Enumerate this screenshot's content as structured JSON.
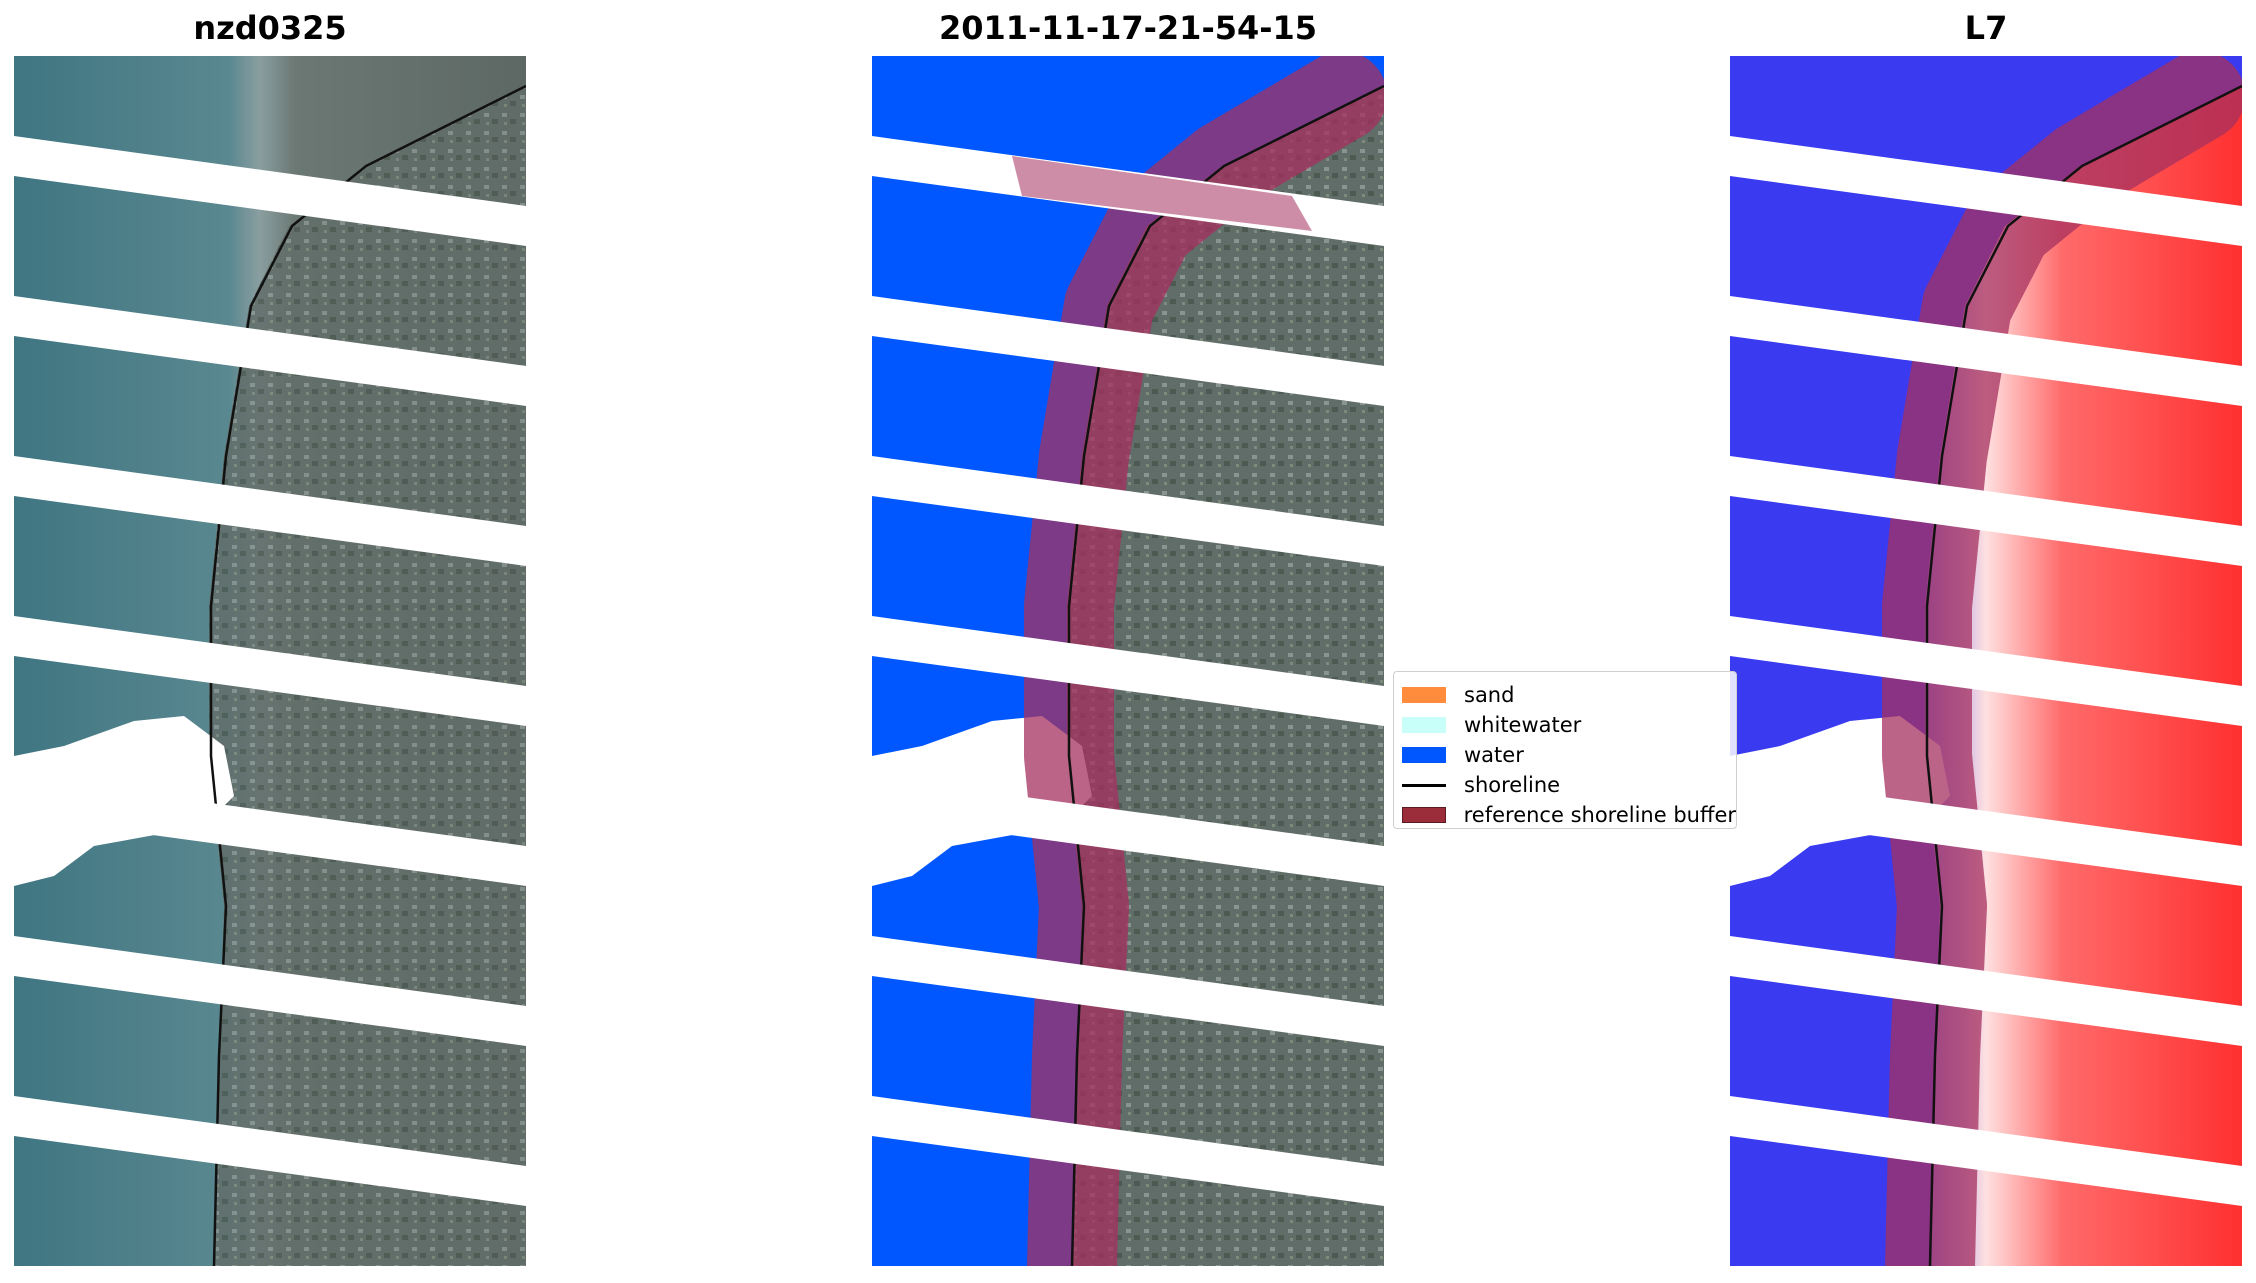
{
  "panels": [
    {
      "title": "nzd0325",
      "kind": "rgb-satellite-image"
    },
    {
      "title": "2011-11-17-21-54-15",
      "kind": "classified-image"
    },
    {
      "title": "L7",
      "kind": "water-index-image"
    }
  ],
  "legend": {
    "items": [
      {
        "label": "sand",
        "color": "#ff8c3c",
        "type": "patch"
      },
      {
        "label": "whitewater",
        "color": "#c8fff8",
        "type": "patch"
      },
      {
        "label": "water",
        "color": "#0057ff",
        "type": "patch"
      },
      {
        "label": "shoreline",
        "color": "#000000",
        "type": "line"
      },
      {
        "label": "reference shoreline buffer",
        "color": "#9b2d3a",
        "type": "patch"
      }
    ]
  },
  "colors": {
    "ocean": "#4a7f8a",
    "land": "#5f6b68",
    "water_class": "#0057ff",
    "buffer": "#a5305f",
    "index_water": "#3a3af0",
    "index_land": "#ff3535",
    "stripe_gap": "#ffffff"
  }
}
